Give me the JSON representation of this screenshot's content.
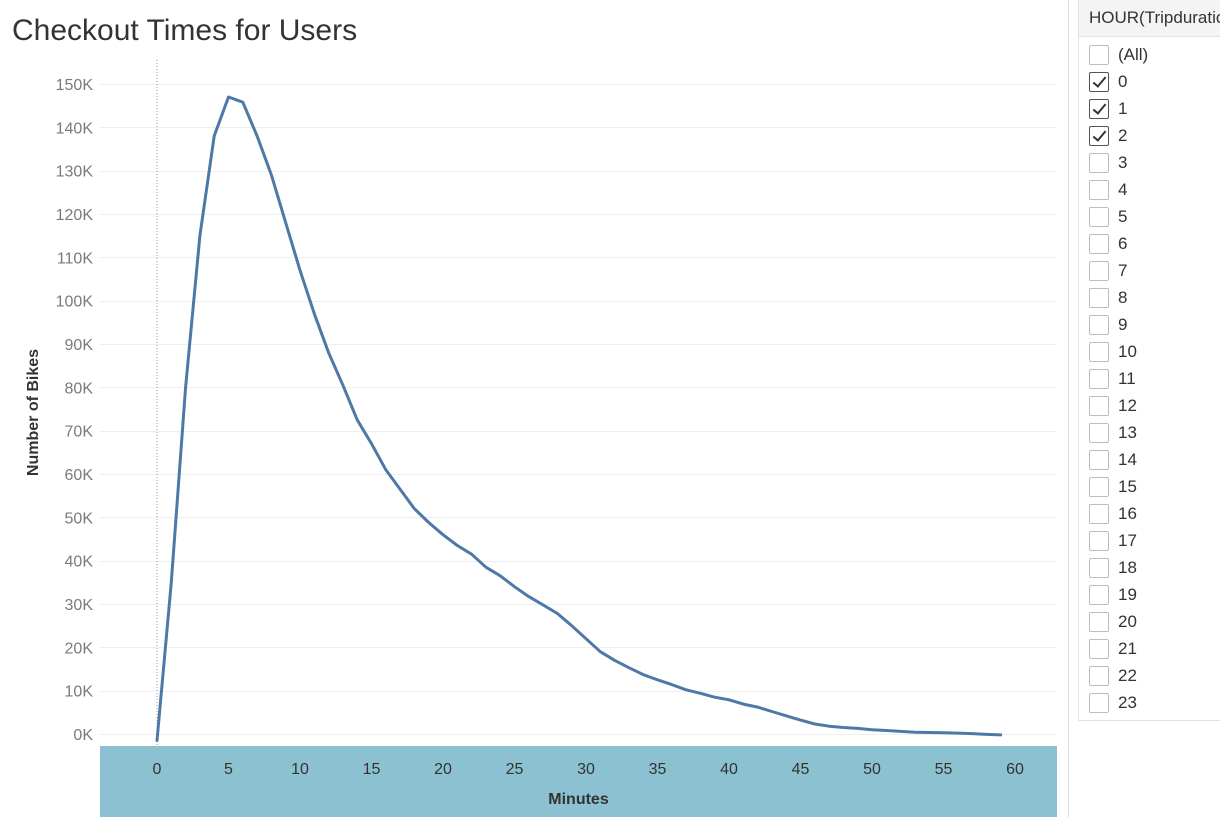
{
  "chart_data": {
    "type": "line",
    "title": "Checkout Times for Users",
    "xlabel": "Minutes",
    "ylabel": "Number of Bikes",
    "xlim": [
      -4,
      63
    ],
    "ylim": [
      -1000,
      151000
    ],
    "xticks": [
      0,
      5,
      10,
      15,
      20,
      25,
      30,
      35,
      40,
      45,
      50,
      55,
      60
    ],
    "yticks": [
      0,
      10000,
      20000,
      30000,
      40000,
      50000,
      60000,
      70000,
      80000,
      90000,
      100000,
      110000,
      120000,
      130000,
      140000,
      150000
    ],
    "ytick_labels": [
      "0K",
      "10K",
      "20K",
      "30K",
      "40K",
      "50K",
      "60K",
      "70K",
      "80K",
      "90K",
      "100K",
      "110K",
      "120K",
      "130K",
      "140K",
      "150K"
    ],
    "grid": true,
    "line_color": "#4e79a7",
    "x_axis_band_color": "#8bc1d0",
    "series": [
      {
        "x": [
          0,
          1,
          2,
          3,
          4,
          5,
          6,
          7,
          8,
          9,
          10,
          11,
          12,
          13,
          14,
          15,
          16,
          17,
          18,
          19,
          20,
          21,
          22,
          23,
          24,
          25,
          26,
          27,
          28,
          29,
          30,
          31,
          32,
          33,
          34,
          35,
          36,
          37,
          38,
          39,
          40,
          41,
          42,
          43,
          44,
          45,
          46,
          47,
          48,
          49,
          50,
          51,
          52,
          53,
          54,
          55,
          56,
          57,
          58,
          59
        ],
        "values": [
          -1500,
          35000,
          80000,
          115000,
          138000,
          147000,
          145800,
          138000,
          129000,
          118000,
          107000,
          97000,
          88000,
          80500,
          72500,
          67000,
          61000,
          56500,
          52000,
          48800,
          46000,
          43500,
          41500,
          38500,
          36500,
          34000,
          31700,
          29800,
          27800,
          25000,
          22000,
          19000,
          17000,
          15300,
          13700,
          12500,
          11400,
          10200,
          9400,
          8500,
          7900,
          6900,
          6200,
          5200,
          4200,
          3200,
          2300,
          1800,
          1500,
          1300,
          1000,
          800,
          600,
          400,
          350,
          300,
          200,
          100,
          -100,
          -200
        ]
      }
    ]
  },
  "filter": {
    "header": "HOUR(Tripduration)",
    "items": [
      {
        "label": "(All)",
        "checked": false
      },
      {
        "label": "0",
        "checked": true
      },
      {
        "label": "1",
        "checked": true
      },
      {
        "label": "2",
        "checked": true
      },
      {
        "label": "3",
        "checked": false
      },
      {
        "label": "4",
        "checked": false
      },
      {
        "label": "5",
        "checked": false
      },
      {
        "label": "6",
        "checked": false
      },
      {
        "label": "7",
        "checked": false
      },
      {
        "label": "8",
        "checked": false
      },
      {
        "label": "9",
        "checked": false
      },
      {
        "label": "10",
        "checked": false
      },
      {
        "label": "11",
        "checked": false
      },
      {
        "label": "12",
        "checked": false
      },
      {
        "label": "13",
        "checked": false
      },
      {
        "label": "14",
        "checked": false
      },
      {
        "label": "15",
        "checked": false
      },
      {
        "label": "16",
        "checked": false
      },
      {
        "label": "17",
        "checked": false
      },
      {
        "label": "18",
        "checked": false
      },
      {
        "label": "19",
        "checked": false
      },
      {
        "label": "20",
        "checked": false
      },
      {
        "label": "21",
        "checked": false
      },
      {
        "label": "22",
        "checked": false
      },
      {
        "label": "23",
        "checked": false
      }
    ]
  }
}
